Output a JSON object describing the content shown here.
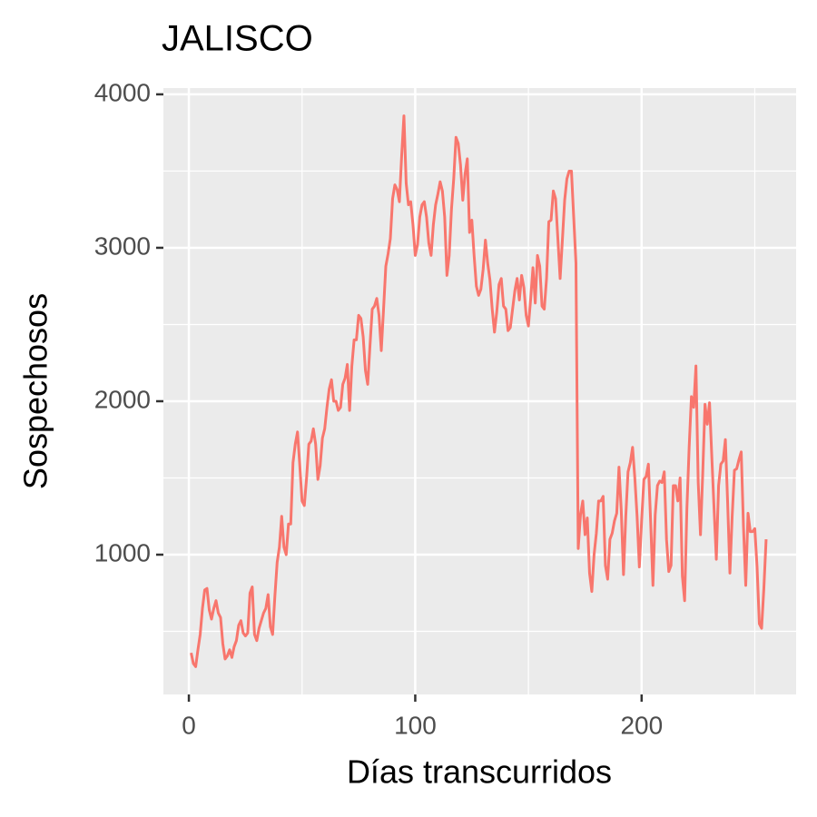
{
  "chart_data": {
    "type": "line",
    "title": "JALISCO",
    "x_label": "Días transcurridos",
    "y_label": "Sospechosos",
    "x": [
      1,
      2,
      3,
      4,
      5,
      6,
      7,
      8,
      9,
      10,
      11,
      12,
      13,
      14,
      15,
      16,
      17,
      18,
      19,
      20,
      21,
      22,
      23,
      24,
      25,
      26,
      27,
      28,
      29,
      30,
      31,
      32,
      33,
      34,
      35,
      36,
      37,
      38,
      39,
      40,
      41,
      42,
      43,
      44,
      45,
      46,
      47,
      48,
      49,
      50,
      51,
      52,
      53,
      54,
      55,
      56,
      57,
      58,
      59,
      60,
      61,
      62,
      63,
      64,
      65,
      66,
      67,
      68,
      69,
      70,
      71,
      72,
      73,
      74,
      75,
      76,
      77,
      78,
      79,
      80,
      81,
      82,
      83,
      84,
      85,
      86,
      87,
      88,
      89,
      90,
      91,
      92,
      93,
      94,
      95,
      96,
      97,
      98,
      99,
      100,
      101,
      102,
      103,
      104,
      105,
      106,
      107,
      108,
      109,
      110,
      111,
      112,
      113,
      114,
      115,
      116,
      117,
      118,
      119,
      120,
      121,
      122,
      123,
      124,
      125,
      126,
      127,
      128,
      129,
      130,
      131,
      132,
      133,
      134,
      135,
      136,
      137,
      138,
      139,
      140,
      141,
      142,
      143,
      144,
      145,
      146,
      147,
      148,
      149,
      150,
      151,
      152,
      153,
      154,
      155,
      156,
      157,
      158,
      159,
      160,
      161,
      162,
      163,
      164,
      165,
      166,
      167,
      168,
      169,
      170,
      171,
      172,
      173,
      174,
      175,
      176,
      177,
      178,
      179,
      180,
      181,
      182,
      183,
      184,
      185,
      186,
      187,
      188,
      189,
      190,
      191,
      192,
      193,
      194,
      195,
      196,
      197,
      198,
      199,
      200,
      201,
      202,
      203,
      204,
      205,
      206,
      207,
      208,
      209,
      210,
      211,
      212,
      213,
      214,
      215,
      216,
      217,
      218,
      219,
      220,
      221,
      222,
      223,
      224,
      225,
      226,
      227,
      228,
      229,
      230,
      231,
      232,
      233,
      234,
      235,
      236,
      237,
      238,
      239,
      240,
      241,
      242,
      243,
      244,
      245,
      246,
      247,
      248,
      249,
      250,
      251,
      252,
      253,
      254,
      255
    ],
    "series": [
      {
        "color": "#f8766d",
        "values": [
          360,
          290,
          270,
          380,
          480,
          650,
          770,
          780,
          640,
          580,
          650,
          700,
          620,
          590,
          420,
          320,
          340,
          380,
          330,
          400,
          440,
          540,
          570,
          490,
          470,
          490,
          750,
          790,
          480,
          440,
          520,
          570,
          620,
          650,
          740,
          530,
          480,
          730,
          950,
          1050,
          1250,
          1050,
          1000,
          1200,
          1200,
          1600,
          1720,
          1800,
          1580,
          1350,
          1320,
          1500,
          1720,
          1740,
          1820,
          1720,
          1490,
          1580,
          1760,
          1820,
          1960,
          2080,
          2140,
          2000,
          2000,
          1940,
          1960,
          2110,
          2150,
          2240,
          1940,
          2230,
          2400,
          2400,
          2560,
          2540,
          2420,
          2200,
          2110,
          2360,
          2600,
          2620,
          2670,
          2560,
          2330,
          2600,
          2880,
          2960,
          3060,
          3320,
          3410,
          3380,
          3300,
          3600,
          3860,
          3420,
          3280,
          3300,
          3150,
          2950,
          3020,
          3200,
          3280,
          3300,
          3200,
          3030,
          2950,
          3150,
          3280,
          3350,
          3430,
          3370,
          3200,
          2820,
          2950,
          3250,
          3450,
          3720,
          3680,
          3540,
          3310,
          3480,
          3580,
          3100,
          3180,
          2950,
          2750,
          2690,
          2730,
          2860,
          3050,
          2900,
          2790,
          2600,
          2450,
          2580,
          2760,
          2800,
          2620,
          2600,
          2460,
          2480,
          2600,
          2720,
          2800,
          2660,
          2820,
          2740,
          2560,
          2490,
          2670,
          2870,
          2640,
          2950,
          2880,
          2620,
          2600,
          2800,
          3170,
          3180,
          3370,
          3320,
          3060,
          2800,
          3050,
          3310,
          3450,
          3500,
          3500,
          3200,
          2900,
          1040,
          1260,
          1350,
          1130,
          1240,
          880,
          760,
          1000,
          1140,
          1350,
          1350,
          1380,
          930,
          840,
          1100,
          1140,
          1220,
          1270,
          1570,
          1290,
          870,
          1250,
          1540,
          1600,
          1700,
          1500,
          1250,
          920,
          1220,
          1490,
          1510,
          1590,
          1210,
          800,
          1260,
          1450,
          1480,
          1470,
          1540,
          1100,
          890,
          930,
          1450,
          1450,
          1350,
          1500,
          860,
          700,
          1300,
          1700,
          2030,
          1960,
          2230,
          1470,
          1130,
          1530,
          1980,
          1850,
          1990,
          1640,
          1300,
          970,
          1450,
          1590,
          1610,
          1750,
          1340,
          880,
          1250,
          1550,
          1560,
          1620,
          1670,
          1180,
          800,
          1270,
          1150,
          1150,
          1170,
          920,
          550,
          520,
          780,
          1100
        ]
      }
    ],
    "xlim": [
      -11.25,
      268.25
    ],
    "ylim": [
      89,
      4041
    ],
    "xticks": [
      0,
      100,
      200
    ],
    "yticks": [
      1000,
      2000,
      3000,
      4000
    ],
    "x_minor_ticks": [
      50,
      150,
      250
    ],
    "y_minor_ticks": [
      500,
      1500,
      2500,
      3500
    ],
    "grid": true
  }
}
